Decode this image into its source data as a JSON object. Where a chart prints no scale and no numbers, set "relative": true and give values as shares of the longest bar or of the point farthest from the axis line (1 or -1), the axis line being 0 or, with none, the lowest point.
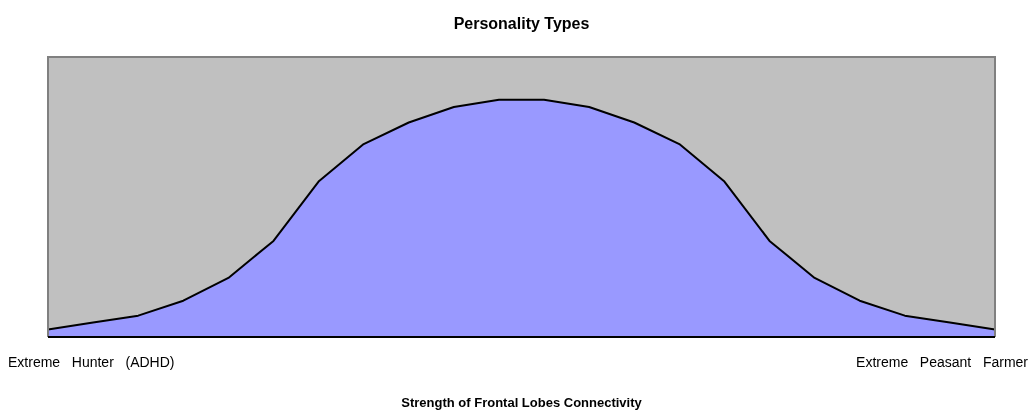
{
  "chart_data": {
    "type": "area",
    "title": "Personality Types",
    "xlabel": "Strength of Frontal Lobes Connectivity",
    "annotations": [
      "Extreme   Hunter   (ADHD)",
      "Extreme   Peasant   Farmer"
    ],
    "relative": true,
    "legend": false,
    "categories": [
      null,
      null,
      null,
      null,
      null,
      null,
      null,
      null,
      null,
      null,
      null,
      null,
      null,
      null,
      null,
      null,
      null,
      null,
      null,
      null,
      null,
      null
    ],
    "series": [
      {
        "color": "#9999ff",
        "values": [
          0.032,
          0.061,
          0.09,
          0.153,
          0.249,
          0.405,
          0.655,
          0.813,
          0.904,
          0.969,
          1,
          1,
          0.969,
          0.904,
          0.813,
          0.655,
          0.405,
          0.249,
          0.153,
          0.09,
          0.061,
          0.032
        ]
      }
    ]
  }
}
